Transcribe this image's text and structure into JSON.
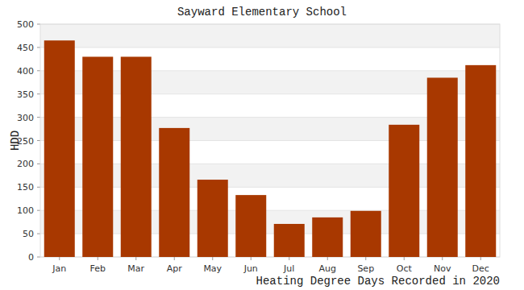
{
  "chart_data": {
    "type": "bar",
    "title": "Sayward Elementary School",
    "x_label": "Heating Degree Days Recorded in 2020",
    "y_label": "HDD",
    "categories": [
      "Jan",
      "Feb",
      "Mar",
      "Apr",
      "May",
      "Jun",
      "Jul",
      "Aug",
      "Sep",
      "Oct",
      "Nov",
      "Dec"
    ],
    "values": [
      465,
      430,
      430,
      277,
      166,
      133,
      71,
      85,
      99,
      284,
      385,
      412
    ],
    "color": "#a83800",
    "ylim": [
      0,
      500
    ],
    "yticks": [
      0,
      50,
      100,
      150,
      200,
      250,
      300,
      350,
      400,
      450,
      500
    ],
    "grid": true
  }
}
